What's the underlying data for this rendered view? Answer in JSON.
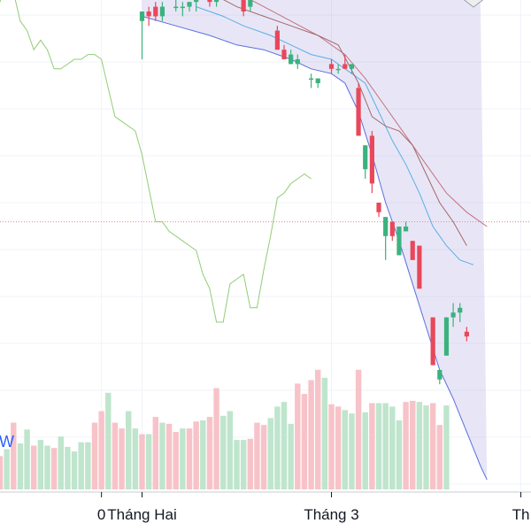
{
  "chart_data": {
    "type": "candlestick",
    "title": "",
    "xlabel": "",
    "ylabel": "",
    "x_tick_labels": [
      {
        "label": "0",
        "day": -6
      },
      {
        "label": "Tháng Hai",
        "day": 0
      },
      {
        "label": "Tháng 3",
        "day": 28
      },
      {
        "label": "Th",
        "day": 56
      }
    ],
    "x_range": [
      -21,
      57.5
    ],
    "price_range": [
      0,
      100
    ],
    "reference_line_price": 56,
    "grid": true,
    "candles": [
      {
        "day": 0,
        "open": 98,
        "high": 100,
        "low": 90,
        "close": 100
      },
      {
        "day": 1,
        "open": 100,
        "high": 101,
        "low": 97,
        "close": 99
      },
      {
        "day": 2,
        "open": 101,
        "high": 102,
        "low": 98,
        "close": 99
      },
      {
        "day": 3,
        "open": 99,
        "high": 102,
        "low": 98,
        "close": 101
      },
      {
        "day": 5,
        "open": 101,
        "high": 103,
        "low": 100,
        "close": 101
      },
      {
        "day": 6,
        "open": 101,
        "high": 102,
        "low": 99,
        "close": 101
      },
      {
        "day": 7,
        "open": 101,
        "high": 102,
        "low": 100,
        "close": 102
      },
      {
        "day": 8,
        "open": 102,
        "high": 104,
        "low": 100,
        "close": 103
      },
      {
        "day": 10,
        "open": 103,
        "high": 104,
        "low": 101,
        "close": 102
      },
      {
        "day": 11,
        "open": 102,
        "high": 104,
        "low": 101,
        "close": 104
      },
      {
        "day": 15,
        "open": 104,
        "high": 105,
        "low": 99,
        "close": 100
      },
      {
        "day": 16,
        "open": 101,
        "high": 104,
        "low": 100,
        "close": 103
      },
      {
        "day": 20,
        "open": 96,
        "high": 97,
        "low": 92,
        "close": 92
      },
      {
        "day": 21,
        "open": 92,
        "high": 93,
        "low": 90,
        "close": 90
      },
      {
        "day": 22,
        "open": 89,
        "high": 92,
        "low": 89,
        "close": 91
      },
      {
        "day": 23,
        "open": 89,
        "high": 91,
        "low": 88,
        "close": 90
      },
      {
        "day": 25,
        "open": 86,
        "high": 87,
        "low": 84,
        "close": 86
      },
      {
        "day": 26,
        "open": 85,
        "high": 86,
        "low": 84,
        "close": 86
      },
      {
        "day": 28,
        "open": 89,
        "high": 90,
        "low": 87,
        "close": 88
      },
      {
        "day": 29,
        "open": 88,
        "high": 89,
        "low": 87,
        "close": 88
      },
      {
        "day": 30,
        "open": 89,
        "high": 91,
        "low": 88,
        "close": 88
      },
      {
        "day": 31,
        "open": 88,
        "high": 89,
        "low": 87,
        "close": 89
      },
      {
        "day": 32,
        "open": 84,
        "high": 85,
        "low": 74,
        "close": 74
      },
      {
        "day": 33,
        "open": 67,
        "high": 72,
        "low": 65,
        "close": 72
      },
      {
        "day": 34,
        "open": 74,
        "high": 75,
        "low": 62,
        "close": 64
      },
      {
        "day": 35,
        "open": 60,
        "high": 60,
        "low": 57,
        "close": 58
      },
      {
        "day": 36,
        "open": 53,
        "high": 57,
        "low": 48,
        "close": 57
      },
      {
        "day": 37,
        "open": 56,
        "high": 56,
        "low": 52,
        "close": 53
      },
      {
        "day": 38,
        "open": 49,
        "high": 55,
        "low": 49,
        "close": 55
      },
      {
        "day": 39,
        "open": 54,
        "high": 56,
        "low": 54,
        "close": 55
      },
      {
        "day": 40,
        "open": 52,
        "high": 52,
        "low": 48,
        "close": 48
      },
      {
        "day": 41,
        "open": 51,
        "high": 51,
        "low": 42,
        "close": 42
      },
      {
        "day": 43,
        "open": 36,
        "high": 36,
        "low": 26,
        "close": 26
      },
      {
        "day": 44,
        "open": 23,
        "high": 25,
        "low": 22,
        "close": 25
      },
      {
        "day": 45,
        "open": 28,
        "high": 36,
        "low": 28,
        "close": 36
      },
      {
        "day": 46,
        "open": 36,
        "high": 39,
        "low": 34,
        "close": 37
      },
      {
        "day": 47,
        "open": 37,
        "high": 39,
        "low": 35,
        "close": 38
      },
      {
        "day": 48,
        "open": 33,
        "high": 34,
        "low": 31,
        "close": 32
      }
    ],
    "bands": {
      "upper": [
        [
          0,
          104
        ],
        [
          1,
          104
        ],
        [
          2,
          104
        ],
        [
          3,
          104
        ],
        [
          4,
          104
        ],
        [
          5,
          104
        ],
        [
          6,
          104
        ],
        [
          7,
          104
        ],
        [
          8,
          104
        ],
        [
          9,
          104
        ],
        [
          10,
          104
        ],
        [
          11,
          104
        ],
        [
          12,
          104
        ],
        [
          13,
          104
        ],
        [
          14,
          104
        ],
        [
          15,
          104
        ],
        [
          16,
          104
        ],
        [
          17,
          104
        ],
        [
          18,
          104
        ],
        [
          19,
          104
        ],
        [
          20,
          104
        ],
        [
          21,
          104
        ],
        [
          22,
          104
        ],
        [
          23,
          104
        ],
        [
          24,
          104
        ],
        [
          25,
          104
        ],
        [
          26,
          104
        ],
        [
          27,
          104
        ],
        [
          28,
          104
        ],
        [
          29,
          104
        ],
        [
          30,
          104
        ],
        [
          31,
          104
        ],
        [
          32,
          104
        ],
        [
          33,
          104
        ],
        [
          34,
          104
        ],
        [
          35,
          104
        ],
        [
          36,
          104
        ],
        [
          37,
          104
        ],
        [
          38,
          104
        ],
        [
          39,
          104
        ],
        [
          40,
          104
        ],
        [
          41,
          104
        ],
        [
          42,
          104
        ],
        [
          43,
          104
        ],
        [
          44,
          104
        ],
        [
          45,
          104
        ],
        [
          46,
          104
        ],
        [
          47,
          104
        ],
        [
          48,
          104
        ],
        [
          49,
          104
        ],
        [
          50,
          104
        ]
      ],
      "middle": [
        [
          8,
          101
        ],
        [
          12,
          99
        ],
        [
          15,
          97
        ],
        [
          19,
          95
        ],
        [
          22,
          93
        ],
        [
          25,
          91
        ],
        [
          28,
          90
        ],
        [
          31,
          87
        ],
        [
          33,
          85
        ],
        [
          35,
          79
        ],
        [
          37,
          73
        ],
        [
          39,
          68
        ],
        [
          41,
          62
        ],
        [
          43,
          55
        ],
        [
          45,
          51
        ],
        [
          47,
          48
        ],
        [
          49,
          47
        ]
      ],
      "lower": [
        [
          0,
          99
        ],
        [
          5,
          97
        ],
        [
          10,
          95
        ],
        [
          14,
          93
        ],
        [
          18,
          92
        ],
        [
          22,
          90
        ],
        [
          25,
          88
        ],
        [
          28,
          87
        ],
        [
          30,
          85
        ],
        [
          32,
          79
        ],
        [
          34,
          70
        ],
        [
          36,
          60
        ],
        [
          38,
          52
        ],
        [
          40,
          43
        ],
        [
          42,
          34
        ],
        [
          44,
          25
        ],
        [
          46,
          19
        ],
        [
          48,
          12
        ],
        [
          50,
          5
        ],
        [
          51,
          2
        ]
      ]
    },
    "moving_averages": [
      {
        "color": "#c2737d",
        "points": [
          [
            14,
            104
          ],
          [
            18,
            101
          ],
          [
            22,
            98
          ],
          [
            26,
            95
          ],
          [
            30,
            91
          ],
          [
            33,
            86
          ],
          [
            36,
            80
          ],
          [
            39,
            74
          ],
          [
            42,
            68
          ],
          [
            45,
            62
          ],
          [
            48,
            58
          ],
          [
            51,
            55
          ]
        ]
      },
      {
        "color": "#a4686a",
        "points": [
          [
            10,
            104
          ],
          [
            14,
            101
          ],
          [
            18,
            99
          ],
          [
            22,
            97
          ],
          [
            26,
            95
          ],
          [
            29,
            93
          ],
          [
            32,
            85
          ],
          [
            34,
            78
          ],
          [
            36,
            76
          ],
          [
            38,
            75
          ],
          [
            40,
            72
          ],
          [
            42,
            66
          ],
          [
            44,
            60
          ],
          [
            46,
            56
          ],
          [
            48,
            51
          ]
        ]
      }
    ],
    "oscillator": {
      "color": "#91cc75",
      "points": [
        [
          -21,
          102
        ],
        [
          -20,
          108
        ],
        [
          -19,
          104
        ],
        [
          -18,
          98
        ],
        [
          -17,
          96
        ],
        [
          -16,
          92
        ],
        [
          -15,
          94
        ],
        [
          -14,
          92
        ],
        [
          -13,
          88
        ],
        [
          -12,
          88
        ],
        [
          -11,
          89
        ],
        [
          -10,
          90
        ],
        [
          -9,
          90
        ],
        [
          -8,
          91
        ],
        [
          -7,
          91
        ],
        [
          -6,
          90
        ],
        [
          -4,
          78
        ],
        [
          -3,
          77
        ],
        [
          -1,
          75
        ],
        [
          0,
          70
        ],
        [
          1,
          63
        ],
        [
          2,
          56
        ],
        [
          3,
          56
        ],
        [
          4,
          54
        ],
        [
          6,
          52
        ],
        [
          7,
          51
        ],
        [
          8,
          50
        ],
        [
          9,
          45
        ],
        [
          10,
          42
        ],
        [
          11,
          35
        ],
        [
          12,
          35
        ],
        [
          13,
          43
        ],
        [
          14,
          44
        ],
        [
          15,
          45
        ],
        [
          16,
          38
        ],
        [
          17,
          38
        ],
        [
          18,
          46
        ],
        [
          19,
          53
        ],
        [
          20,
          61
        ],
        [
          21,
          62
        ],
        [
          22,
          64
        ],
        [
          23,
          65
        ],
        [
          24,
          66
        ],
        [
          25,
          65
        ]
      ]
    },
    "volume": {
      "up_color": "#bfe5cd",
      "down_color": "#f7c3c8",
      "max": 100,
      "bars": [
        {
          "day": -21,
          "value": 29,
          "dir": "down"
        },
        {
          "day": -20,
          "value": 35,
          "dir": "up"
        },
        {
          "day": -19,
          "value": 58,
          "dir": "down"
        },
        {
          "day": -18,
          "value": 40,
          "dir": "up"
        },
        {
          "day": -17,
          "value": 52,
          "dir": "up"
        },
        {
          "day": -16,
          "value": 38,
          "dir": "down"
        },
        {
          "day": -15,
          "value": 43,
          "dir": "up"
        },
        {
          "day": -14,
          "value": 38,
          "dir": "up"
        },
        {
          "day": -13,
          "value": 36,
          "dir": "down"
        },
        {
          "day": -12,
          "value": 46,
          "dir": "up"
        },
        {
          "day": -11,
          "value": 37,
          "dir": "up"
        },
        {
          "day": -10,
          "value": 33,
          "dir": "up"
        },
        {
          "day": -9,
          "value": 41,
          "dir": "up"
        },
        {
          "day": -8,
          "value": 41,
          "dir": "up"
        },
        {
          "day": -7,
          "value": 58,
          "dir": "down"
        },
        {
          "day": -6,
          "value": 68,
          "dir": "down"
        },
        {
          "day": -5,
          "value": 84,
          "dir": "up"
        },
        {
          "day": -4,
          "value": 58,
          "dir": "down"
        },
        {
          "day": -3,
          "value": 53,
          "dir": "down"
        },
        {
          "day": -2,
          "value": 68,
          "dir": "up"
        },
        {
          "day": -1,
          "value": 53,
          "dir": "up"
        },
        {
          "day": 0,
          "value": 48,
          "dir": "down"
        },
        {
          "day": 1,
          "value": 48,
          "dir": "up"
        },
        {
          "day": 2,
          "value": 63,
          "dir": "down"
        },
        {
          "day": 3,
          "value": 58,
          "dir": "up"
        },
        {
          "day": 4,
          "value": 57,
          "dir": "down"
        },
        {
          "day": 5,
          "value": 50,
          "dir": "down"
        },
        {
          "day": 6,
          "value": 53,
          "dir": "up"
        },
        {
          "day": 7,
          "value": 53,
          "dir": "down"
        },
        {
          "day": 8,
          "value": 59,
          "dir": "down"
        },
        {
          "day": 9,
          "value": 60,
          "dir": "up"
        },
        {
          "day": 10,
          "value": 63,
          "dir": "down"
        },
        {
          "day": 11,
          "value": 88,
          "dir": "down"
        },
        {
          "day": 12,
          "value": 64,
          "dir": "up"
        },
        {
          "day": 13,
          "value": 68,
          "dir": "up"
        },
        {
          "day": 14,
          "value": 43,
          "dir": "up"
        },
        {
          "day": 15,
          "value": 43,
          "dir": "up"
        },
        {
          "day": 16,
          "value": 44,
          "dir": "down"
        },
        {
          "day": 17,
          "value": 58,
          "dir": "down"
        },
        {
          "day": 18,
          "value": 56,
          "dir": "down"
        },
        {
          "day": 19,
          "value": 62,
          "dir": "up"
        },
        {
          "day": 20,
          "value": 72,
          "dir": "up"
        },
        {
          "day": 21,
          "value": 76,
          "dir": "up"
        },
        {
          "day": 22,
          "value": 57,
          "dir": "up"
        },
        {
          "day": 23,
          "value": 92,
          "dir": "down"
        },
        {
          "day": 24,
          "value": 83,
          "dir": "down"
        },
        {
          "day": 25,
          "value": 95,
          "dir": "down"
        },
        {
          "day": 26,
          "value": 104,
          "dir": "down"
        },
        {
          "day": 27,
          "value": 97,
          "dir": "up"
        },
        {
          "day": 28,
          "value": 74,
          "dir": "down"
        },
        {
          "day": 29,
          "value": 72,
          "dir": "down"
        },
        {
          "day": 30,
          "value": 69,
          "dir": "up"
        },
        {
          "day": 31,
          "value": 66,
          "dir": "up"
        },
        {
          "day": 32,
          "value": 104,
          "dir": "down"
        },
        {
          "day": 33,
          "value": 67,
          "dir": "up"
        },
        {
          "day": 34,
          "value": 75,
          "dir": "down"
        },
        {
          "day": 35,
          "value": 75,
          "dir": "up"
        },
        {
          "day": 36,
          "value": 75,
          "dir": "up"
        },
        {
          "day": 37,
          "value": 72,
          "dir": "up"
        },
        {
          "day": 38,
          "value": 60,
          "dir": "up"
        },
        {
          "day": 39,
          "value": 76,
          "dir": "down"
        },
        {
          "day": 40,
          "value": 77,
          "dir": "down"
        },
        {
          "day": 41,
          "value": 76,
          "dir": "up"
        },
        {
          "day": 42,
          "value": 73,
          "dir": "up"
        },
        {
          "day": 43,
          "value": 75,
          "dir": "down"
        },
        {
          "day": 44,
          "value": 56,
          "dir": "down"
        },
        {
          "day": 45,
          "value": 73,
          "dir": "up"
        }
      ]
    },
    "watermark_text": "W"
  }
}
